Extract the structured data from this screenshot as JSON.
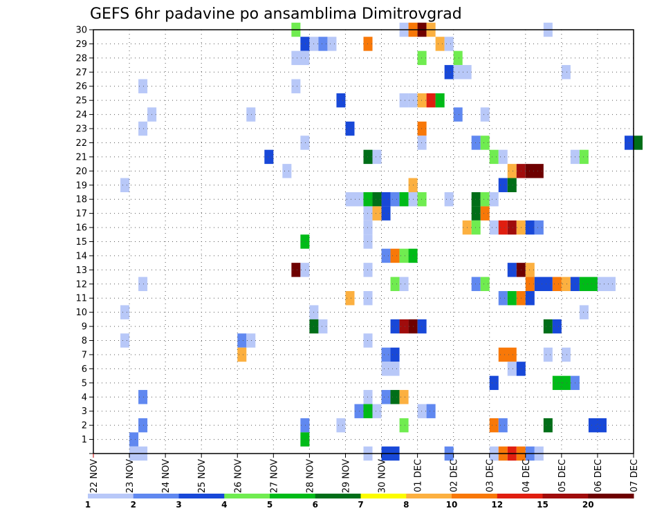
{
  "chart_data": {
    "type": "heatmap",
    "title": "GEFS 6hr padavine po ansamblima Dimitrovgrad",
    "xlabel": "",
    "ylabel": "",
    "x_axis": {
      "start": "22 NOV",
      "end": "07 DEC",
      "step_hours": 6,
      "tick_labels": [
        "22 NOV",
        "23 NOV",
        "24 NOV",
        "25 NOV",
        "26 NOV",
        "27 NOV",
        "28 NOV",
        "29 NOV",
        "30 NOV",
        "01 DEC",
        "02 DEC",
        "03 DEC",
        "04 DEC",
        "05 DEC",
        "06 DEC",
        "07 DEC"
      ]
    },
    "y_axis": {
      "label_values": [
        1,
        2,
        3,
        4,
        5,
        6,
        7,
        8,
        9,
        10,
        11,
        12,
        13,
        14,
        15,
        16,
        17,
        18,
        19,
        20,
        21,
        22,
        23,
        24,
        25,
        26,
        27,
        28,
        29,
        30
      ],
      "ylim": [
        0,
        30
      ]
    },
    "grid": true,
    "colorbar": {
      "placement": "bottom",
      "labels": [
        "1",
        "2",
        "3",
        "4",
        "5",
        "6",
        "7",
        "8",
        "10",
        "12",
        "15",
        "20"
      ],
      "colors": [
        "#b8c8f8",
        "#6088f0",
        "#1848d8",
        "#70ec50",
        "#00bb18",
        "#006e18",
        "#fcfc00",
        "#fcb040",
        "#f87808",
        "#e01e10",
        "#a00c0c",
        "#6e0000"
      ]
    },
    "cells_format": [
      "member",
      "start_date",
      "start_hour",
      "end_date",
      "end_hour",
      "color_class"
    ],
    "cells": [
      [
        30,
        "27 NOV",
        12,
        "27 NOV",
        18,
        4
      ],
      [
        30,
        "30 NOV",
        12,
        "30 NOV",
        18,
        1
      ],
      [
        30,
        "30 NOV",
        18,
        "01 DEC",
        0,
        9
      ],
      [
        30,
        "01 DEC",
        0,
        "01 DEC",
        6,
        12
      ],
      [
        30,
        "01 DEC",
        6,
        "01 DEC",
        12,
        8
      ],
      [
        30,
        "04 DEC",
        12,
        "04 DEC",
        18,
        1
      ],
      [
        29,
        "27 NOV",
        18,
        "28 NOV",
        0,
        3
      ],
      [
        29,
        "28 NOV",
        0,
        "28 NOV",
        6,
        1
      ],
      [
        29,
        "28 NOV",
        6,
        "28 NOV",
        12,
        2
      ],
      [
        29,
        "28 NOV",
        12,
        "28 NOV",
        18,
        1
      ],
      [
        29,
        "29 NOV",
        12,
        "29 NOV",
        18,
        9
      ],
      [
        29,
        "01 DEC",
        12,
        "01 DEC",
        18,
        8
      ],
      [
        29,
        "01 DEC",
        18,
        "02 DEC",
        0,
        1
      ],
      [
        28,
        "27 NOV",
        12,
        "28 NOV",
        0,
        1
      ],
      [
        28,
        "01 DEC",
        0,
        "01 DEC",
        6,
        4
      ],
      [
        28,
        "02 DEC",
        0,
        "02 DEC",
        6,
        4
      ],
      [
        27,
        "01 DEC",
        18,
        "02 DEC",
        0,
        3
      ],
      [
        27,
        "02 DEC",
        0,
        "02 DEC",
        12,
        1
      ],
      [
        27,
        "05 DEC",
        0,
        "05 DEC",
        6,
        1
      ],
      [
        26,
        "23 NOV",
        6,
        "23 NOV",
        12,
        1
      ],
      [
        26,
        "27 NOV",
        12,
        "27 NOV",
        18,
        1
      ],
      [
        25,
        "28 NOV",
        18,
        "29 NOV",
        0,
        3
      ],
      [
        25,
        "30 NOV",
        12,
        "30 NOV",
        18,
        1
      ],
      [
        25,
        "30 NOV",
        18,
        "01 DEC",
        0,
        1
      ],
      [
        25,
        "01 DEC",
        0,
        "01 DEC",
        6,
        8
      ],
      [
        25,
        "01 DEC",
        6,
        "01 DEC",
        12,
        10
      ],
      [
        25,
        "01 DEC",
        12,
        "01 DEC",
        18,
        5
      ],
      [
        24,
        "23 NOV",
        12,
        "23 NOV",
        18,
        1
      ],
      [
        24,
        "26 NOV",
        6,
        "26 NOV",
        12,
        1
      ],
      [
        24,
        "02 DEC",
        0,
        "02 DEC",
        6,
        2
      ],
      [
        24,
        "02 DEC",
        18,
        "03 DEC",
        0,
        1
      ],
      [
        23,
        "23 NOV",
        6,
        "23 NOV",
        12,
        1
      ],
      [
        23,
        "29 NOV",
        0,
        "29 NOV",
        6,
        3
      ],
      [
        23,
        "01 DEC",
        0,
        "01 DEC",
        6,
        9
      ],
      [
        22,
        "27 NOV",
        18,
        "28 NOV",
        0,
        1
      ],
      [
        22,
        "01 DEC",
        0,
        "01 DEC",
        6,
        1
      ],
      [
        22,
        "02 DEC",
        12,
        "02 DEC",
        18,
        2
      ],
      [
        22,
        "02 DEC",
        18,
        "03 DEC",
        0,
        4
      ],
      [
        22,
        "06 DEC",
        18,
        "07 DEC",
        0,
        3
      ],
      [
        22,
        "07 DEC",
        0,
        "07 DEC",
        6,
        6
      ],
      [
        21,
        "26 NOV",
        18,
        "27 NOV",
        0,
        3
      ],
      [
        21,
        "29 NOV",
        12,
        "29 NOV",
        18,
        6
      ],
      [
        21,
        "29 NOV",
        18,
        "30 NOV",
        0,
        1
      ],
      [
        21,
        "03 DEC",
        0,
        "03 DEC",
        6,
        4
      ],
      [
        21,
        "03 DEC",
        6,
        "03 DEC",
        12,
        1
      ],
      [
        21,
        "05 DEC",
        6,
        "05 DEC",
        12,
        1
      ],
      [
        21,
        "05 DEC",
        12,
        "05 DEC",
        18,
        4
      ],
      [
        20,
        "27 NOV",
        6,
        "27 NOV",
        12,
        1
      ],
      [
        20,
        "03 DEC",
        12,
        "03 DEC",
        18,
        8
      ],
      [
        20,
        "03 DEC",
        18,
        "04 DEC",
        0,
        11
      ],
      [
        20,
        "04 DEC",
        0,
        "04 DEC",
        12,
        12
      ],
      [
        19,
        "22 NOV",
        18,
        "23 NOV",
        0,
        1
      ],
      [
        19,
        "30 NOV",
        18,
        "01 DEC",
        0,
        8
      ],
      [
        19,
        "03 DEC",
        6,
        "03 DEC",
        12,
        3
      ],
      [
        19,
        "03 DEC",
        12,
        "03 DEC",
        18,
        6
      ],
      [
        18,
        "29 NOV",
        0,
        "29 NOV",
        12,
        1
      ],
      [
        18,
        "29 NOV",
        12,
        "29 NOV",
        18,
        5
      ],
      [
        18,
        "29 NOV",
        18,
        "30 NOV",
        0,
        6
      ],
      [
        18,
        "30 NOV",
        0,
        "30 NOV",
        6,
        3
      ],
      [
        18,
        "30 NOV",
        6,
        "30 NOV",
        12,
        2
      ],
      [
        18,
        "30 NOV",
        12,
        "30 NOV",
        18,
        5
      ],
      [
        18,
        "30 NOV",
        18,
        "01 DEC",
        0,
        1
      ],
      [
        18,
        "01 DEC",
        0,
        "01 DEC",
        6,
        4
      ],
      [
        18,
        "01 DEC",
        18,
        "02 DEC",
        0,
        1
      ],
      [
        18,
        "02 DEC",
        12,
        "02 DEC",
        18,
        6
      ],
      [
        18,
        "02 DEC",
        18,
        "03 DEC",
        0,
        4
      ],
      [
        18,
        "03 DEC",
        0,
        "03 DEC",
        6,
        1
      ],
      [
        17,
        "29 NOV",
        12,
        "29 NOV",
        18,
        1
      ],
      [
        17,
        "29 NOV",
        18,
        "30 NOV",
        0,
        8
      ],
      [
        17,
        "30 NOV",
        0,
        "30 NOV",
        6,
        3
      ],
      [
        17,
        "02 DEC",
        12,
        "02 DEC",
        18,
        6
      ],
      [
        17,
        "02 DEC",
        18,
        "03 DEC",
        0,
        9
      ],
      [
        16,
        "29 NOV",
        12,
        "29 NOV",
        18,
        1
      ],
      [
        16,
        "02 DEC",
        6,
        "02 DEC",
        12,
        8
      ],
      [
        16,
        "02 DEC",
        12,
        "02 DEC",
        18,
        4
      ],
      [
        16,
        "03 DEC",
        0,
        "03 DEC",
        6,
        1
      ],
      [
        16,
        "03 DEC",
        6,
        "03 DEC",
        12,
        10
      ],
      [
        16,
        "03 DEC",
        12,
        "03 DEC",
        18,
        11
      ],
      [
        16,
        "03 DEC",
        18,
        "04 DEC",
        0,
        8
      ],
      [
        16,
        "04 DEC",
        0,
        "04 DEC",
        6,
        3
      ],
      [
        16,
        "04 DEC",
        6,
        "04 DEC",
        12,
        2
      ],
      [
        15,
        "27 NOV",
        18,
        "28 NOV",
        0,
        5
      ],
      [
        15,
        "29 NOV",
        12,
        "29 NOV",
        18,
        1
      ],
      [
        14,
        "30 NOV",
        0,
        "30 NOV",
        6,
        2
      ],
      [
        14,
        "30 NOV",
        6,
        "30 NOV",
        12,
        9
      ],
      [
        14,
        "30 NOV",
        12,
        "30 NOV",
        18,
        4
      ],
      [
        14,
        "30 NOV",
        18,
        "01 DEC",
        0,
        5
      ],
      [
        13,
        "27 NOV",
        12,
        "27 NOV",
        18,
        12
      ],
      [
        13,
        "27 NOV",
        18,
        "28 NOV",
        0,
        1
      ],
      [
        13,
        "29 NOV",
        12,
        "29 NOV",
        18,
        1
      ],
      [
        13,
        "03 DEC",
        12,
        "03 DEC",
        18,
        3
      ],
      [
        13,
        "03 DEC",
        18,
        "04 DEC",
        0,
        12
      ],
      [
        13,
        "04 DEC",
        0,
        "04 DEC",
        6,
        8
      ],
      [
        12,
        "23 NOV",
        6,
        "23 NOV",
        12,
        1
      ],
      [
        12,
        "30 NOV",
        6,
        "30 NOV",
        12,
        4
      ],
      [
        12,
        "30 NOV",
        12,
        "30 NOV",
        18,
        1
      ],
      [
        12,
        "02 DEC",
        12,
        "02 DEC",
        18,
        2
      ],
      [
        12,
        "02 DEC",
        18,
        "03 DEC",
        0,
        4
      ],
      [
        12,
        "04 DEC",
        0,
        "04 DEC",
        6,
        9
      ],
      [
        12,
        "04 DEC",
        6,
        "04 DEC",
        18,
        3
      ],
      [
        12,
        "04 DEC",
        18,
        "05 DEC",
        0,
        9
      ],
      [
        12,
        "05 DEC",
        0,
        "05 DEC",
        6,
        8
      ],
      [
        12,
        "05 DEC",
        6,
        "05 DEC",
        12,
        3
      ],
      [
        12,
        "05 DEC",
        12,
        "06 DEC",
        0,
        5
      ],
      [
        12,
        "06 DEC",
        0,
        "06 DEC",
        12,
        1
      ],
      [
        11,
        "29 NOV",
        0,
        "29 NOV",
        6,
        8
      ],
      [
        11,
        "29 NOV",
        12,
        "29 NOV",
        18,
        1
      ],
      [
        11,
        "03 DEC",
        6,
        "03 DEC",
        12,
        2
      ],
      [
        11,
        "03 DEC",
        12,
        "03 DEC",
        18,
        5
      ],
      [
        11,
        "03 DEC",
        18,
        "04 DEC",
        0,
        9
      ],
      [
        11,
        "04 DEC",
        0,
        "04 DEC",
        6,
        3
      ],
      [
        10,
        "22 NOV",
        18,
        "23 NOV",
        0,
        1
      ],
      [
        10,
        "28 NOV",
        0,
        "28 NOV",
        6,
        1
      ],
      [
        10,
        "05 DEC",
        12,
        "05 DEC",
        18,
        1
      ],
      [
        9,
        "28 NOV",
        0,
        "28 NOV",
        6,
        6
      ],
      [
        9,
        "28 NOV",
        6,
        "28 NOV",
        12,
        1
      ],
      [
        9,
        "30 NOV",
        6,
        "30 NOV",
        12,
        3
      ],
      [
        9,
        "30 NOV",
        12,
        "30 NOV",
        18,
        11
      ],
      [
        9,
        "30 NOV",
        18,
        "01 DEC",
        0,
        12
      ],
      [
        9,
        "01 DEC",
        0,
        "01 DEC",
        6,
        3
      ],
      [
        9,
        "04 DEC",
        12,
        "04 DEC",
        18,
        6
      ],
      [
        9,
        "04 DEC",
        18,
        "05 DEC",
        0,
        3
      ],
      [
        8,
        "22 NOV",
        18,
        "23 NOV",
        0,
        1
      ],
      [
        8,
        "26 NOV",
        0,
        "26 NOV",
        6,
        2
      ],
      [
        8,
        "26 NOV",
        6,
        "26 NOV",
        12,
        1
      ],
      [
        8,
        "29 NOV",
        12,
        "29 NOV",
        18,
        1
      ],
      [
        7,
        "26 NOV",
        0,
        "26 NOV",
        6,
        8
      ],
      [
        7,
        "30 NOV",
        0,
        "30 NOV",
        6,
        2
      ],
      [
        7,
        "30 NOV",
        6,
        "30 NOV",
        12,
        3
      ],
      [
        7,
        "03 DEC",
        6,
        "03 DEC",
        18,
        9
      ],
      [
        7,
        "04 DEC",
        12,
        "04 DEC",
        18,
        1
      ],
      [
        7,
        "05 DEC",
        0,
        "05 DEC",
        6,
        1
      ],
      [
        6,
        "30 NOV",
        0,
        "30 NOV",
        12,
        1
      ],
      [
        6,
        "03 DEC",
        12,
        "03 DEC",
        18,
        1
      ],
      [
        6,
        "03 DEC",
        18,
        "04 DEC",
        0,
        3
      ],
      [
        5,
        "03 DEC",
        0,
        "03 DEC",
        6,
        3
      ],
      [
        5,
        "04 DEC",
        18,
        "05 DEC",
        6,
        5
      ],
      [
        5,
        "05 DEC",
        6,
        "05 DEC",
        12,
        2
      ],
      [
        4,
        "23 NOV",
        6,
        "23 NOV",
        12,
        2
      ],
      [
        4,
        "29 NOV",
        12,
        "29 NOV",
        18,
        1
      ],
      [
        4,
        "30 NOV",
        0,
        "30 NOV",
        6,
        2
      ],
      [
        4,
        "30 NOV",
        6,
        "30 NOV",
        12,
        6
      ],
      [
        4,
        "30 NOV",
        12,
        "30 NOV",
        18,
        8
      ],
      [
        3,
        "29 NOV",
        6,
        "29 NOV",
        12,
        2
      ],
      [
        3,
        "29 NOV",
        12,
        "29 NOV",
        18,
        5
      ],
      [
        3,
        "29 NOV",
        18,
        "30 NOV",
        0,
        1
      ],
      [
        3,
        "01 DEC",
        0,
        "01 DEC",
        6,
        1
      ],
      [
        3,
        "01 DEC",
        6,
        "01 DEC",
        12,
        2
      ],
      [
        2,
        "23 NOV",
        6,
        "23 NOV",
        12,
        2
      ],
      [
        2,
        "27 NOV",
        18,
        "28 NOV",
        0,
        2
      ],
      [
        2,
        "28 NOV",
        18,
        "29 NOV",
        0,
        1
      ],
      [
        2,
        "30 NOV",
        12,
        "30 NOV",
        18,
        4
      ],
      [
        2,
        "03 DEC",
        0,
        "03 DEC",
        6,
        9
      ],
      [
        2,
        "03 DEC",
        6,
        "03 DEC",
        12,
        2
      ],
      [
        2,
        "04 DEC",
        12,
        "04 DEC",
        18,
        6
      ],
      [
        2,
        "05 DEC",
        18,
        "06 DEC",
        6,
        3
      ],
      [
        1,
        "23 NOV",
        0,
        "23 NOV",
        6,
        2
      ],
      [
        1,
        "27 NOV",
        18,
        "28 NOV",
        0,
        5
      ],
      [
        0,
        "23 NOV",
        0,
        "23 NOV",
        12,
        1
      ],
      [
        0,
        "29 NOV",
        12,
        "29 NOV",
        18,
        1
      ],
      [
        0,
        "30 NOV",
        0,
        "30 NOV",
        12,
        3
      ],
      [
        0,
        "01 DEC",
        18,
        "02 DEC",
        0,
        2
      ],
      [
        0,
        "03 DEC",
        0,
        "03 DEC",
        6,
        1
      ],
      [
        0,
        "03 DEC",
        6,
        "03 DEC",
        12,
        9
      ],
      [
        0,
        "03 DEC",
        12,
        "03 DEC",
        18,
        10
      ],
      [
        0,
        "03 DEC",
        18,
        "04 DEC",
        0,
        9
      ],
      [
        0,
        "04 DEC",
        0,
        "04 DEC",
        6,
        2
      ],
      [
        0,
        "04 DEC",
        6,
        "04 DEC",
        12,
        1
      ]
    ]
  }
}
